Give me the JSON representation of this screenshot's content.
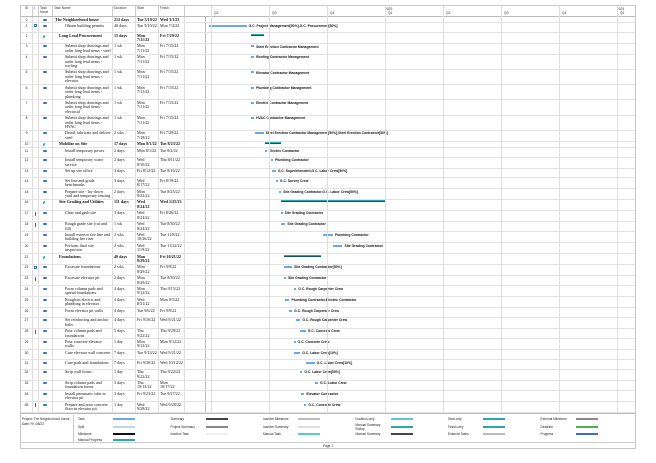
{
  "columns": {
    "id": "ID",
    "indicators": "i",
    "mode": "Task Mode",
    "name": "Task Name",
    "duration": "Duration",
    "start": "Start",
    "finish": "Finish"
  },
  "timescale": {
    "quarters": [
      "Q2",
      "Q3",
      "Q4",
      "Q1",
      "Q2",
      "Q3",
      "Q4",
      "Q1",
      "Q2"
    ],
    "years": [
      "2023",
      "2024"
    ]
  },
  "tasks": [
    {
      "id": "0",
      "name": "The Neighborhood house",
      "duration": "212 days",
      "start": "Tue 5/10/22",
      "finish": "Wed 3/1/23",
      "summary": true,
      "mode": "manual",
      "s": "2022-05-10",
      "f": "2023-03-01",
      "resources": ""
    },
    {
      "id": "1",
      "name": "Obtain building permits",
      "duration": "40 days",
      "start": "Tue 5/10/22",
      "finish": "Mon 7/4/22",
      "mode": "manual",
      "ind": [
        "calendar"
      ],
      "s": "2022-05-10",
      "f": "2022-07-04",
      "resources": "G.C. Project Management[50%],G.C. Procurement[50%]",
      "tall": true
    },
    {
      "id": "2",
      "name": "Long Lead Procurement",
      "duration": "15 days",
      "start": "Mon 7/11/22",
      "finish": "Fri 7/29/22",
      "summary": true,
      "mode": "auto",
      "s": "2022-07-11",
      "f": "2022-07-29",
      "resources": ""
    },
    {
      "id": "3",
      "name": "Submit shop drawings and order long lead items - steel",
      "duration": "1 wk",
      "start": "Mon 7/11/22",
      "finish": "Fri 7/15/22",
      "mode": "manual",
      "s": "2022-07-11",
      "f": "2022-07-15",
      "resources": "Steel Erection Contractor Management",
      "tall": true
    },
    {
      "id": "4",
      "name": "Submit shop drawings and order long lead items - roofing",
      "duration": "1 wk",
      "start": "Mon 7/11/22",
      "finish": "Fri 7/15/22",
      "mode": "manual",
      "s": "2022-07-11",
      "f": "2022-07-15",
      "resources": "Roofing Contractor Management",
      "tall": true
    },
    {
      "id": "5",
      "name": "Submit shop drawings and order long lead items - elevator",
      "duration": "1 wk",
      "start": "Mon 7/11/22",
      "finish": "Fri 7/15/22",
      "mode": "manual",
      "s": "2022-07-11",
      "f": "2022-07-15",
      "resources": "Elevator Contractor Management",
      "tall": true
    },
    {
      "id": "6",
      "name": "Submit shop drawings and order long lead items - plumbing",
      "duration": "1 wk",
      "start": "Mon 7/11/22",
      "finish": "Fri 7/15/22",
      "mode": "manual",
      "s": "2022-07-11",
      "f": "2022-07-15",
      "resources": "Plumbing Contractor Management",
      "tall": true
    },
    {
      "id": "7",
      "name": "Submit shop drawings and order long lead items - electrical",
      "duration": "1 wk",
      "start": "Mon 7/11/22",
      "finish": "Fri 7/15/22",
      "mode": "manual",
      "s": "2022-07-11",
      "f": "2022-07-15",
      "resources": "Electric Contractor Management",
      "tall": true
    },
    {
      "id": "8",
      "name": "Submit shop drawings and order long lead items - HVAC",
      "duration": "1 wk",
      "start": "Mon 7/11/22",
      "finish": "Fri 7/15/22",
      "mode": "manual",
      "s": "2022-07-11",
      "f": "2022-07-15",
      "resources": "HVAC Contractor Management",
      "tall": true
    },
    {
      "id": "9",
      "name": "Detail, fabricate and deliver steel",
      "duration": "2 wks",
      "start": "Mon 7/18/22",
      "finish": "Fri 7/29/22",
      "mode": "manual",
      "s": "2022-07-18",
      "f": "2022-07-29",
      "resources": "Steel Erection Contractor Management[50%],Steel Erection Contractor[50%]",
      "tall": true
    },
    {
      "id": "10",
      "name": "Mobilize on Site",
      "duration": "17 days",
      "start": "Mon 8/1/22",
      "finish": "Tue 8/23/22",
      "summary": true,
      "mode": "auto",
      "s": "2022-08-01",
      "f": "2022-08-23",
      "resources": ""
    },
    {
      "id": "11",
      "name": "Install temporary power",
      "duration": "2 days",
      "start": "Mon 8/1/22",
      "finish": "Tue 8/2/22",
      "mode": "manual",
      "s": "2022-08-01",
      "f": "2022-08-02",
      "resources": "Electric Contractor",
      "tall": true
    },
    {
      "id": "12",
      "name": "Install temporary water service",
      "duration": "2 days",
      "start": "Wed 8/10/22",
      "finish": "Thu 8/11/22",
      "mode": "manual",
      "s": "2022-08-10",
      "f": "2022-08-11",
      "resources": "Plumbing Contractor",
      "tall": true
    },
    {
      "id": "13",
      "name": "Set up site office",
      "duration": "3 days",
      "start": "Fri 8/12/22",
      "finish": "Tue 8/16/22",
      "mode": "manual",
      "s": "2022-08-12",
      "f": "2022-08-16",
      "resources": "G.C. Superintendent,G.C. Labor Crew[50%]",
      "tall": true
    },
    {
      "id": "14",
      "name": "Set line and grade benchmarks",
      "duration": "3 days",
      "start": "Wed 8/17/22",
      "finish": "Fri 8/19/22",
      "mode": "manual",
      "s": "2022-08-17",
      "f": "2022-08-19",
      "resources": "G.C. Survey Crew",
      "tall": true
    },
    {
      "id": "15",
      "name": "Prepare site - lay down yard and temporary fencing",
      "duration": "2 days",
      "start": "Mon 8/22/22",
      "finish": "Tue 8/23/22",
      "mode": "manual",
      "s": "2022-08-22",
      "f": "2022-08-23",
      "resources": "Site Grading Contractor,G.C. Labor Crew[50%]",
      "tall": true
    },
    {
      "id": "16",
      "name": "Site Grading and Utilities",
      "duration": "111 days",
      "start": "Wed 8/24/22",
      "finish": "Wed 1/25/23",
      "summary": true,
      "mode": "auto",
      "s": "2022-08-24",
      "f": "2023-01-25",
      "resources": ""
    },
    {
      "id": "17",
      "name": "Clear and grub site",
      "duration": "3 days",
      "start": "Wed 8/24/22",
      "finish": "Fri 8/26/22",
      "mode": "manual",
      "ind": [
        "warning"
      ],
      "s": "2022-08-24",
      "f": "2022-08-26",
      "resources": "Site Grading Contractor",
      "tall": true
    },
    {
      "id": "18",
      "name": "Rough grade site (cut and fill)",
      "duration": "1 wk",
      "start": "Wed 8/24/22",
      "finish": "Tue 8/30/22",
      "mode": "manual",
      "ind": [
        "warning"
      ],
      "s": "2022-08-24",
      "f": "2022-08-30",
      "resources": "Site Grading Contractor",
      "tall": true
    },
    {
      "id": "19",
      "name": "Install exterior fire line and building fire riser",
      "duration": "2 wks",
      "start": "Wed 10/26/22",
      "finish": "Tue 11/8/22",
      "mode": "manual",
      "s": "2022-10-26",
      "f": "2022-11-08",
      "resources": "Plumbing Contractor",
      "tall": true
    },
    {
      "id": "20",
      "name": "Perform final site inspection",
      "duration": "2 wks",
      "start": "Wed 11/9/22",
      "finish": "Tue 11/22/22",
      "mode": "manual",
      "s": "2022-11-09",
      "f": "2022-11-22",
      "resources": "Site Grading Contractor",
      "tall": true
    },
    {
      "id": "21",
      "name": "Foundations",
      "duration": "40 days",
      "start": "Mon 8/29/22",
      "finish": "Fri 10/21/22",
      "summary": true,
      "mode": "auto",
      "s": "2022-08-29",
      "f": "2022-10-21",
      "resources": ""
    },
    {
      "id": "22",
      "name": "Excavate foundations",
      "duration": "2 wks",
      "start": "Mon 8/29/22",
      "finish": "Fri 9/9/22",
      "mode": "manual",
      "ind": [
        "calendar",
        "warning"
      ],
      "s": "2022-08-29",
      "f": "2022-09-09",
      "resources": "Site Grading Contractor[50%]",
      "tall": true
    },
    {
      "id": "23",
      "name": "Excavate elevator pit",
      "duration": "2 days",
      "start": "Mon 8/29/22",
      "finish": "Tue 8/30/22",
      "mode": "manual",
      "ind": [
        "warning"
      ],
      "s": "2022-08-29",
      "f": "2022-08-30",
      "resources": "Site Grading Contractor",
      "tall": true
    },
    {
      "id": "24",
      "name": "Form column pads and spread foundations",
      "duration": "4 days",
      "start": "Mon 9/12/22",
      "finish": "Thu 9/15/22",
      "mode": "manual",
      "s": "2022-09-12",
      "f": "2022-09-15",
      "resources": "G.C. Rough Carpenter Crew",
      "tall": true
    },
    {
      "id": "25",
      "name": "Rough-in electric and plumbing in elevator",
      "duration": "4 days",
      "start": "Wed 8/31/22",
      "finish": "Mon 9/5/22",
      "mode": "manual",
      "s": "2022-08-31",
      "f": "2022-09-05",
      "resources": "Plumbing Contractor,Electric Contractor",
      "tall": true
    },
    {
      "id": "26",
      "name": "Form elevator pit walls",
      "duration": "4 days",
      "start": "Tue 9/6/22",
      "finish": "Fri 9/9/22",
      "mode": "manual",
      "s": "2022-09-06",
      "f": "2022-09-09",
      "resources": "G.C. Rough Carpenter Crew",
      "tall": true
    },
    {
      "id": "27",
      "name": "Set reinforcing and anchor bolts",
      "duration": "4 days",
      "start": "Fri 9/16/22",
      "finish": "Wed 9/21/22",
      "mode": "manual",
      "s": "2022-09-16",
      "f": "2022-09-21",
      "resources": "G.C. Rough Carpenter Crew",
      "tall": true
    },
    {
      "id": "28",
      "name": "Pour column pads and foundations",
      "duration": "5 days",
      "start": "Thu 9/22/22",
      "finish": "Thu 9/29/22",
      "mode": "manual",
      "ind": [
        "warning"
      ],
      "s": "2022-09-22",
      "f": "2022-09-29",
      "resources": "G.C. Concrete Crew",
      "tall": true
    },
    {
      "id": "29",
      "name": "Pour concrete elevator walls",
      "duration": "1 day",
      "start": "Mon 9/12/22",
      "finish": "Mon 9/12/22",
      "mode": "manual",
      "s": "2022-09-12",
      "f": "2022-09-12",
      "resources": "G.C. Concrete Crew",
      "tall": true
    },
    {
      "id": "30",
      "name": "Cure elevator wall concrete",
      "duration": "7 days",
      "start": "Tue 9/13/22",
      "finish": "Wed 9/21/22",
      "mode": "manual",
      "s": "2022-09-13",
      "f": "2022-09-21",
      "resources": "G.C. Labor Crew[10%]",
      "tall": true
    },
    {
      "id": "31",
      "name": "Cure pads and foundations",
      "duration": "7 days",
      "start": "Fri 9/30/22",
      "finish": "Wed 10/12/22",
      "mode": "manual",
      "s": "2022-09-30",
      "f": "2022-10-12",
      "resources": "G.C. Labor Crew[10%]",
      "tall": true
    },
    {
      "id": "32",
      "name": "Strip wall forms",
      "duration": "1 day",
      "start": "Thu 9/22/22",
      "finish": "Thu 9/22/22",
      "mode": "manual",
      "s": "2022-09-22",
      "f": "2022-09-22",
      "resources": "G.C. Labor Crew[50%]",
      "tall": true
    },
    {
      "id": "33",
      "name": "Strip column pads and foundation forms",
      "duration": "3 days",
      "start": "Thu 10/13/22",
      "finish": "Mon 10/17/22",
      "mode": "manual",
      "s": "2022-10-13",
      "f": "2022-10-17",
      "resources": "G.C. Labor Crew",
      "tall": true
    },
    {
      "id": "34",
      "name": "Install pneumatic tube in elevator pit",
      "duration": "3 days",
      "start": "Fri 9/23/22",
      "finish": "Tue 9/27/22",
      "mode": "manual",
      "s": "2022-09-23",
      "f": "2022-09-27",
      "resources": "Elevator Contractor",
      "tall": true
    },
    {
      "id": "35",
      "name": "Prepare and pour concrete floor in elevator pit",
      "duration": "1 day",
      "start": "Wed 9/28/22",
      "finish": "Wed 9/28/22",
      "mode": "manual",
      "ind": [
        "warning"
      ],
      "s": "2022-09-28",
      "f": "2022-09-28",
      "resources": "G.C. Concrete Crew",
      "tall": true
    }
  ],
  "footer": {
    "project": "Project: The Neighborhood house",
    "date": "Date: Fri 4/8/22",
    "page": "Page 1"
  },
  "legend": [
    {
      "label": "Task",
      "color": "#6aa8e8"
    },
    {
      "label": "Summary",
      "color": "#444444"
    },
    {
      "label": "Inactive Milestone",
      "color": "#bbbbbb"
    },
    {
      "label": "Duration-only",
      "color": "#5cc8d0"
    },
    {
      "label": "Start-only",
      "color": "#2aa7a8"
    },
    {
      "label": "External Milestone",
      "color": "#888888"
    },
    {
      "label": "Split",
      "color": "#bcd6ee"
    },
    {
      "label": "Project Summary",
      "color": "#888888"
    },
    {
      "label": "Inactive Summary",
      "color": "#dddddd"
    },
    {
      "label": "Manual Summary Rollup",
      "color": "#2aa7a8"
    },
    {
      "label": "Finish-only",
      "color": "#2aa7a8"
    },
    {
      "label": "Deadline",
      "color": "#4caf50"
    },
    {
      "label": "Milestone",
      "color": "#111111"
    },
    {
      "label": "Inactive Task",
      "color": "#eeeeee"
    },
    {
      "label": "Manual Task",
      "color": "#5cc8d0"
    },
    {
      "label": "Manual Summary",
      "color": "#444444"
    },
    {
      "label": "External Tasks",
      "color": "#bbbbbb"
    },
    {
      "label": "Progress",
      "color": "#3a6fc4"
    },
    {
      "label": "Manual Progress",
      "color": "#2aa7a8"
    }
  ]
}
